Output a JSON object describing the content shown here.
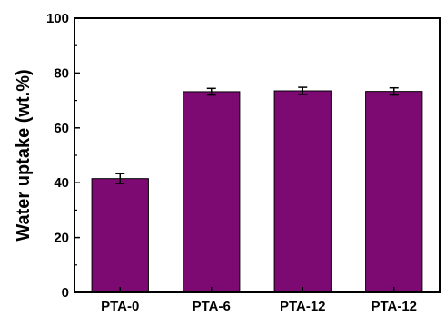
{
  "chart_data": {
    "type": "bar",
    "title": "",
    "xlabel": "",
    "ylabel": "Water uptake (wt.%)",
    "categories": [
      "PTA-0",
      "PTA-6",
      "PTA-12",
      "PTA-12"
    ],
    "values": [
      41.5,
      73.2,
      73.5,
      73.3
    ],
    "errors": [
      1.8,
      1.2,
      1.3,
      1.3
    ],
    "ylim": [
      0,
      100
    ],
    "yticks": [
      0,
      20,
      40,
      60,
      80,
      100
    ],
    "bar_color": "#7d0a73",
    "bar_edge_color": "#000000",
    "grid": false,
    "legend": "none"
  }
}
